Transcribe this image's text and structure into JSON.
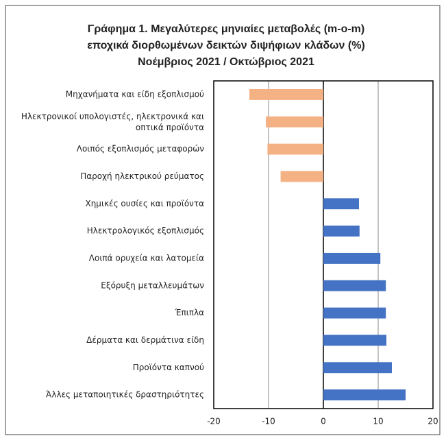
{
  "chart_data": {
    "type": "barh",
    "title": [
      "Γράφημα 1. Μεγαλύτερες μηνιαίες μεταβολές (m-o-m)",
      "εποχικά διορθωμένων δεικτών διψήφιων κλάδων (%)",
      "Νοέμβριος 2021 / Οκτώβριος 2021"
    ],
    "categories": [
      "Μηχανήματα και είδη εξοπλισμού",
      "Ηλεκτρονικοί υπολογιστές, ηλεκτρονικά και\nοπτικά προϊόντα",
      "Λοιπός εξοπλισμός μεταφορών",
      "Παροχή ηλεκτρικού ρεύματος",
      "Χημικές ουσίες και προϊόντα",
      "Ηλεκτρολογικός εξοπλισμός",
      "Λοιπά ορυχεία και λατομεία",
      "Εξόρυξη μεταλλευμάτων",
      "Έπιπλα",
      "Δέρματα και δερμάτινα είδη",
      "Προϊόντα καπνού",
      "Άλλες μεταποιητικές δραστηριότητες"
    ],
    "values": [
      -13.5,
      -10.5,
      -10.2,
      -7.8,
      6.5,
      6.6,
      10.4,
      11.4,
      11.4,
      11.5,
      12.5,
      15.0
    ],
    "colors": [
      "#f4b183",
      "#f4b183",
      "#f4b183",
      "#f4b183",
      "#4472c4",
      "#4472c4",
      "#4472c4",
      "#4472c4",
      "#4472c4",
      "#4472c4",
      "#4472c4",
      "#4472c4"
    ],
    "xlim": [
      -20,
      20
    ],
    "xticks": [
      -20,
      -10,
      0,
      10,
      20
    ],
    "grid": true
  }
}
